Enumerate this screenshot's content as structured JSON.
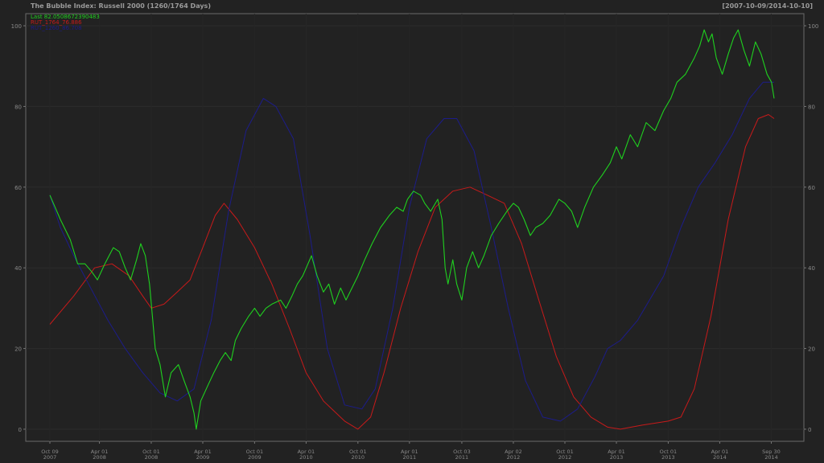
{
  "header": {
    "title": "The Bubble Index: Russell 2000 (1260/1764 Days)",
    "date_range": "[2007-10-09/2014-10-10]"
  },
  "chart_data": {
    "type": "line",
    "title": "The Bubble Index: Russell 2000 (1260/1764 Days)",
    "date_range": "[2007-10-09/2014-10-10]",
    "xlim": [
      "2007-10-09",
      "2014-10-10"
    ],
    "ylim": [
      -3,
      103
    ],
    "y_ticks": [
      0,
      20,
      40,
      60,
      80,
      100
    ],
    "y_axis": "both sides",
    "grid": true,
    "legend_placement": "top-left",
    "x_ticks": [
      {
        "date": "2007-10-09",
        "line1": "Oct 09",
        "line2": "2007"
      },
      {
        "date": "2008-04-01",
        "line1": "Apr 01",
        "line2": "2008"
      },
      {
        "date": "2008-10-01",
        "line1": "Oct 01",
        "line2": "2008"
      },
      {
        "date": "2009-04-01",
        "line1": "Apr 01",
        "line2": "2009"
      },
      {
        "date": "2009-10-01",
        "line1": "Oct 01",
        "line2": "2009"
      },
      {
        "date": "2010-04-01",
        "line1": "Apr 01",
        "line2": "2010"
      },
      {
        "date": "2010-10-01",
        "line1": "Oct 01",
        "line2": "2010"
      },
      {
        "date": "2011-04-01",
        "line1": "Apr 01",
        "line2": "2011"
      },
      {
        "date": "2011-10-03",
        "line1": "Oct 03",
        "line2": "2011"
      },
      {
        "date": "2012-04-02",
        "line1": "Apr 02",
        "line2": "2012"
      },
      {
        "date": "2012-10-01",
        "line1": "Oct 01",
        "line2": "2012"
      },
      {
        "date": "2013-04-01",
        "line1": "Apr 01",
        "line2": "2013"
      },
      {
        "date": "2013-10-01",
        "line1": "Oct 01",
        "line2": "2013"
      },
      {
        "date": "2014-04-01",
        "line1": "Apr 01",
        "line2": "2014"
      },
      {
        "date": "2014-09-30",
        "line1": "Sep 30",
        "line2": "2014"
      }
    ],
    "series": [
      {
        "name": "Last 82.0508672390483",
        "color": "#1fd11f",
        "points": [
          [
            "2007-10-09",
            58
          ],
          [
            "2007-11-15",
            52
          ],
          [
            "2007-12-20",
            47
          ],
          [
            "2008-01-15",
            41
          ],
          [
            "2008-02-10",
            41
          ],
          [
            "2008-03-05",
            39
          ],
          [
            "2008-03-25",
            37
          ],
          [
            "2008-04-20",
            41
          ],
          [
            "2008-05-20",
            45
          ],
          [
            "2008-06-10",
            44
          ],
          [
            "2008-07-01",
            40
          ],
          [
            "2008-07-20",
            37
          ],
          [
            "2008-08-10",
            42
          ],
          [
            "2008-08-25",
            46
          ],
          [
            "2008-09-10",
            43
          ],
          [
            "2008-09-25",
            36
          ],
          [
            "2008-10-05",
            28
          ],
          [
            "2008-10-15",
            20
          ],
          [
            "2008-11-01",
            16
          ],
          [
            "2008-11-20",
            8
          ],
          [
            "2008-12-10",
            14
          ],
          [
            "2009-01-05",
            16
          ],
          [
            "2009-01-25",
            12
          ],
          [
            "2009-02-15",
            8
          ],
          [
            "2009-03-01",
            4
          ],
          [
            "2009-03-09",
            0
          ],
          [
            "2009-03-25",
            7
          ],
          [
            "2009-04-20",
            11
          ],
          [
            "2009-05-10",
            14
          ],
          [
            "2009-06-01",
            17
          ],
          [
            "2009-06-20",
            19
          ],
          [
            "2009-07-10",
            17
          ],
          [
            "2009-07-25",
            22
          ],
          [
            "2009-08-15",
            25
          ],
          [
            "2009-09-10",
            28
          ],
          [
            "2009-10-01",
            30
          ],
          [
            "2009-10-20",
            28
          ],
          [
            "2009-11-10",
            30
          ],
          [
            "2009-12-01",
            31
          ],
          [
            "2010-01-01",
            32
          ],
          [
            "2010-01-20",
            30
          ],
          [
            "2010-02-10",
            33
          ],
          [
            "2010-03-01",
            36
          ],
          [
            "2010-03-20",
            38
          ],
          [
            "2010-04-20",
            43
          ],
          [
            "2010-05-10",
            38
          ],
          [
            "2010-06-01",
            34
          ],
          [
            "2010-06-20",
            36
          ],
          [
            "2010-07-10",
            31
          ],
          [
            "2010-08-01",
            35
          ],
          [
            "2010-08-20",
            32
          ],
          [
            "2010-09-10",
            35
          ],
          [
            "2010-10-01",
            38
          ],
          [
            "2010-10-25",
            42
          ],
          [
            "2010-11-20",
            46
          ],
          [
            "2010-12-20",
            50
          ],
          [
            "2011-01-20",
            53
          ],
          [
            "2011-02-15",
            55
          ],
          [
            "2011-03-10",
            54
          ],
          [
            "2011-03-25",
            57
          ],
          [
            "2011-04-15",
            59
          ],
          [
            "2011-05-10",
            58
          ],
          [
            "2011-05-25",
            56
          ],
          [
            "2011-06-15",
            54
          ],
          [
            "2011-07-10",
            57
          ],
          [
            "2011-07-25",
            52
          ],
          [
            "2011-08-05",
            40
          ],
          [
            "2011-08-15",
            36
          ],
          [
            "2011-09-01",
            42
          ],
          [
            "2011-09-15",
            36
          ],
          [
            "2011-10-03",
            32
          ],
          [
            "2011-10-20",
            40
          ],
          [
            "2011-11-10",
            44
          ],
          [
            "2011-12-01",
            40
          ],
          [
            "2011-12-20",
            43
          ],
          [
            "2012-01-15",
            48
          ],
          [
            "2012-02-10",
            51
          ],
          [
            "2012-03-10",
            54
          ],
          [
            "2012-04-02",
            56
          ],
          [
            "2012-04-20",
            55
          ],
          [
            "2012-05-10",
            52
          ],
          [
            "2012-06-01",
            48
          ],
          [
            "2012-06-20",
            50
          ],
          [
            "2012-07-15",
            51
          ],
          [
            "2012-08-10",
            53
          ],
          [
            "2012-09-10",
            57
          ],
          [
            "2012-10-01",
            56
          ],
          [
            "2012-10-25",
            54
          ],
          [
            "2012-11-15",
            50
          ],
          [
            "2012-12-10",
            55
          ],
          [
            "2013-01-10",
            60
          ],
          [
            "2013-02-10",
            63
          ],
          [
            "2013-03-10",
            66
          ],
          [
            "2013-04-01",
            70
          ],
          [
            "2013-04-20",
            67
          ],
          [
            "2013-05-20",
            73
          ],
          [
            "2013-06-15",
            70
          ],
          [
            "2013-07-15",
            76
          ],
          [
            "2013-08-15",
            74
          ],
          [
            "2013-09-15",
            79
          ],
          [
            "2013-10-10",
            82
          ],
          [
            "2013-11-01",
            86
          ],
          [
            "2013-12-01",
            88
          ],
          [
            "2014-01-01",
            92
          ],
          [
            "2014-01-20",
            95
          ],
          [
            "2014-02-05",
            99
          ],
          [
            "2014-02-20",
            96
          ],
          [
            "2014-03-05",
            98
          ],
          [
            "2014-03-20",
            92
          ],
          [
            "2014-04-10",
            88
          ],
          [
            "2014-05-01",
            93
          ],
          [
            "2014-05-20",
            97
          ],
          [
            "2014-06-05",
            99
          ],
          [
            "2014-06-25",
            94
          ],
          [
            "2014-07-15",
            90
          ],
          [
            "2014-08-05",
            96
          ],
          [
            "2014-08-25",
            93
          ],
          [
            "2014-09-15",
            88
          ],
          [
            "2014-10-01",
            86
          ],
          [
            "2014-10-10",
            82
          ]
        ]
      },
      {
        "name": "RUT_1764_76.886",
        "color": "#c81a1a",
        "points": [
          [
            "2007-10-09",
            26
          ],
          [
            "2008-01-01",
            33
          ],
          [
            "2008-03-15",
            40
          ],
          [
            "2008-05-15",
            41
          ],
          [
            "2008-07-15",
            38
          ],
          [
            "2008-09-01",
            33
          ],
          [
            "2008-10-01",
            30
          ],
          [
            "2008-11-15",
            31
          ],
          [
            "2009-01-01",
            34
          ],
          [
            "2009-02-15",
            37
          ],
          [
            "2009-04-01",
            45
          ],
          [
            "2009-05-15",
            53
          ],
          [
            "2009-06-15",
            56
          ],
          [
            "2009-08-01",
            52
          ],
          [
            "2009-10-01",
            45
          ],
          [
            "2009-12-01",
            36
          ],
          [
            "2010-02-01",
            25
          ],
          [
            "2010-04-01",
            14
          ],
          [
            "2010-06-01",
            7
          ],
          [
            "2010-08-15",
            2
          ],
          [
            "2010-10-01",
            0
          ],
          [
            "2010-11-15",
            3
          ],
          [
            "2011-01-01",
            14
          ],
          [
            "2011-03-01",
            30
          ],
          [
            "2011-05-01",
            44
          ],
          [
            "2011-07-01",
            55
          ],
          [
            "2011-09-01",
            59
          ],
          [
            "2011-11-01",
            60
          ],
          [
            "2012-01-01",
            58
          ],
          [
            "2012-03-01",
            56
          ],
          [
            "2012-05-01",
            46
          ],
          [
            "2012-07-01",
            32
          ],
          [
            "2012-09-01",
            18
          ],
          [
            "2012-11-01",
            8
          ],
          [
            "2013-01-01",
            3
          ],
          [
            "2013-03-01",
            0.5
          ],
          [
            "2013-04-15",
            0
          ],
          [
            "2013-07-01",
            1
          ],
          [
            "2013-10-01",
            2
          ],
          [
            "2013-11-15",
            3
          ],
          [
            "2014-01-01",
            10
          ],
          [
            "2014-03-01",
            28
          ],
          [
            "2014-05-01",
            52
          ],
          [
            "2014-07-01",
            70
          ],
          [
            "2014-08-15",
            77
          ],
          [
            "2014-09-20",
            78
          ],
          [
            "2014-10-10",
            77
          ]
        ]
      },
      {
        "name": "RUT_1260_86.708",
        "color": "#1c1c8a",
        "points": [
          [
            "2007-10-09",
            58
          ],
          [
            "2007-11-15",
            50
          ],
          [
            "2008-01-01",
            43
          ],
          [
            "2008-03-01",
            35
          ],
          [
            "2008-05-01",
            27
          ],
          [
            "2008-07-01",
            20
          ],
          [
            "2008-09-01",
            14
          ],
          [
            "2008-11-01",
            9
          ],
          [
            "2009-01-01",
            7
          ],
          [
            "2009-03-01",
            10
          ],
          [
            "2009-05-01",
            27
          ],
          [
            "2009-07-01",
            54
          ],
          [
            "2009-09-01",
            74
          ],
          [
            "2009-11-01",
            82
          ],
          [
            "2009-12-15",
            80
          ],
          [
            "2010-02-15",
            72
          ],
          [
            "2010-04-15",
            48
          ],
          [
            "2010-06-15",
            20
          ],
          [
            "2010-08-15",
            6
          ],
          [
            "2010-10-15",
            5
          ],
          [
            "2010-12-01",
            10
          ],
          [
            "2011-02-01",
            30
          ],
          [
            "2011-04-01",
            55
          ],
          [
            "2011-06-01",
            72
          ],
          [
            "2011-08-01",
            77
          ],
          [
            "2011-09-15",
            77
          ],
          [
            "2011-11-15",
            69
          ],
          [
            "2012-01-15",
            50
          ],
          [
            "2012-03-15",
            30
          ],
          [
            "2012-05-15",
            12
          ],
          [
            "2012-07-15",
            3
          ],
          [
            "2012-09-15",
            2
          ],
          [
            "2012-11-15",
            5
          ],
          [
            "2013-01-15",
            13
          ],
          [
            "2013-03-01",
            20
          ],
          [
            "2013-04-15",
            22
          ],
          [
            "2013-06-15",
            27
          ],
          [
            "2013-09-15",
            38
          ],
          [
            "2013-11-15",
            50
          ],
          [
            "2014-01-15",
            60
          ],
          [
            "2014-03-15",
            66
          ],
          [
            "2014-05-15",
            73
          ],
          [
            "2014-07-15",
            82
          ],
          [
            "2014-09-01",
            86
          ],
          [
            "2014-10-10",
            86
          ]
        ]
      }
    ]
  }
}
